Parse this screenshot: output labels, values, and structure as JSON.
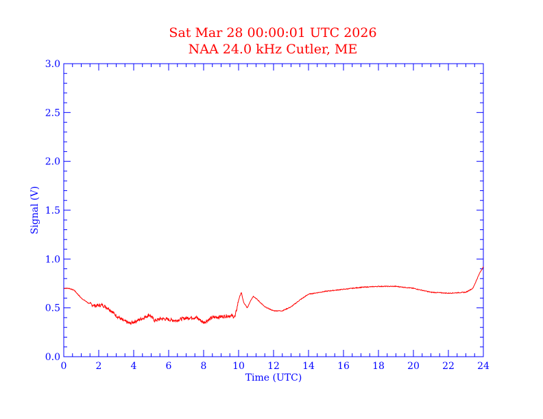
{
  "chart_data": {
    "type": "line",
    "title": "Sat Mar 28 00:00:01 UTC 2026",
    "subtitle": "NAA 24.0 kHz Cutler, ME",
    "xlabel": "Time (UTC)",
    "ylabel": "Signal (V)",
    "xlim": [
      0,
      24
    ],
    "ylim": [
      0.0,
      3.0
    ],
    "x_ticks": [
      "0",
      "2",
      "4",
      "6",
      "8",
      "10",
      "12",
      "14",
      "16",
      "18",
      "20",
      "22",
      "24"
    ],
    "y_ticks": [
      "0.0",
      "0.5",
      "1.0",
      "1.5",
      "2.0",
      "2.5",
      "3.0"
    ],
    "grid": false,
    "colors": {
      "axes": "#0000ff",
      "title": "#ff0000",
      "series": "#ff0000"
    },
    "series": [
      {
        "x": [
          0,
          0.3,
          0.6,
          1.0,
          1.4,
          1.8,
          2.2,
          2.6,
          3.0,
          3.4,
          3.8,
          4.2,
          4.6,
          4.9,
          5.2,
          5.6,
          6.0,
          6.4,
          6.8,
          7.2,
          7.6,
          8.0,
          8.2,
          8.5,
          9.0,
          9.5,
          9.8,
          10.0,
          10.15,
          10.3,
          10.5,
          10.7,
          10.85,
          11.1,
          11.5,
          12.0,
          12.5,
          13.0,
          13.5,
          14.0,
          15.0,
          16.0,
          17.0,
          18.0,
          18.5,
          19.0,
          20.0,
          21.0,
          22.0,
          23.0,
          23.4,
          23.6,
          23.8,
          24.0
        ],
        "y": [
          0.7,
          0.7,
          0.68,
          0.6,
          0.55,
          0.52,
          0.53,
          0.49,
          0.42,
          0.37,
          0.34,
          0.37,
          0.4,
          0.43,
          0.37,
          0.39,
          0.38,
          0.37,
          0.39,
          0.4,
          0.4,
          0.35,
          0.37,
          0.4,
          0.41,
          0.42,
          0.41,
          0.58,
          0.66,
          0.55,
          0.5,
          0.58,
          0.62,
          0.58,
          0.51,
          0.47,
          0.47,
          0.51,
          0.58,
          0.64,
          0.67,
          0.69,
          0.71,
          0.72,
          0.72,
          0.72,
          0.7,
          0.66,
          0.65,
          0.66,
          0.7,
          0.78,
          0.86,
          0.92
        ]
      }
    ]
  }
}
